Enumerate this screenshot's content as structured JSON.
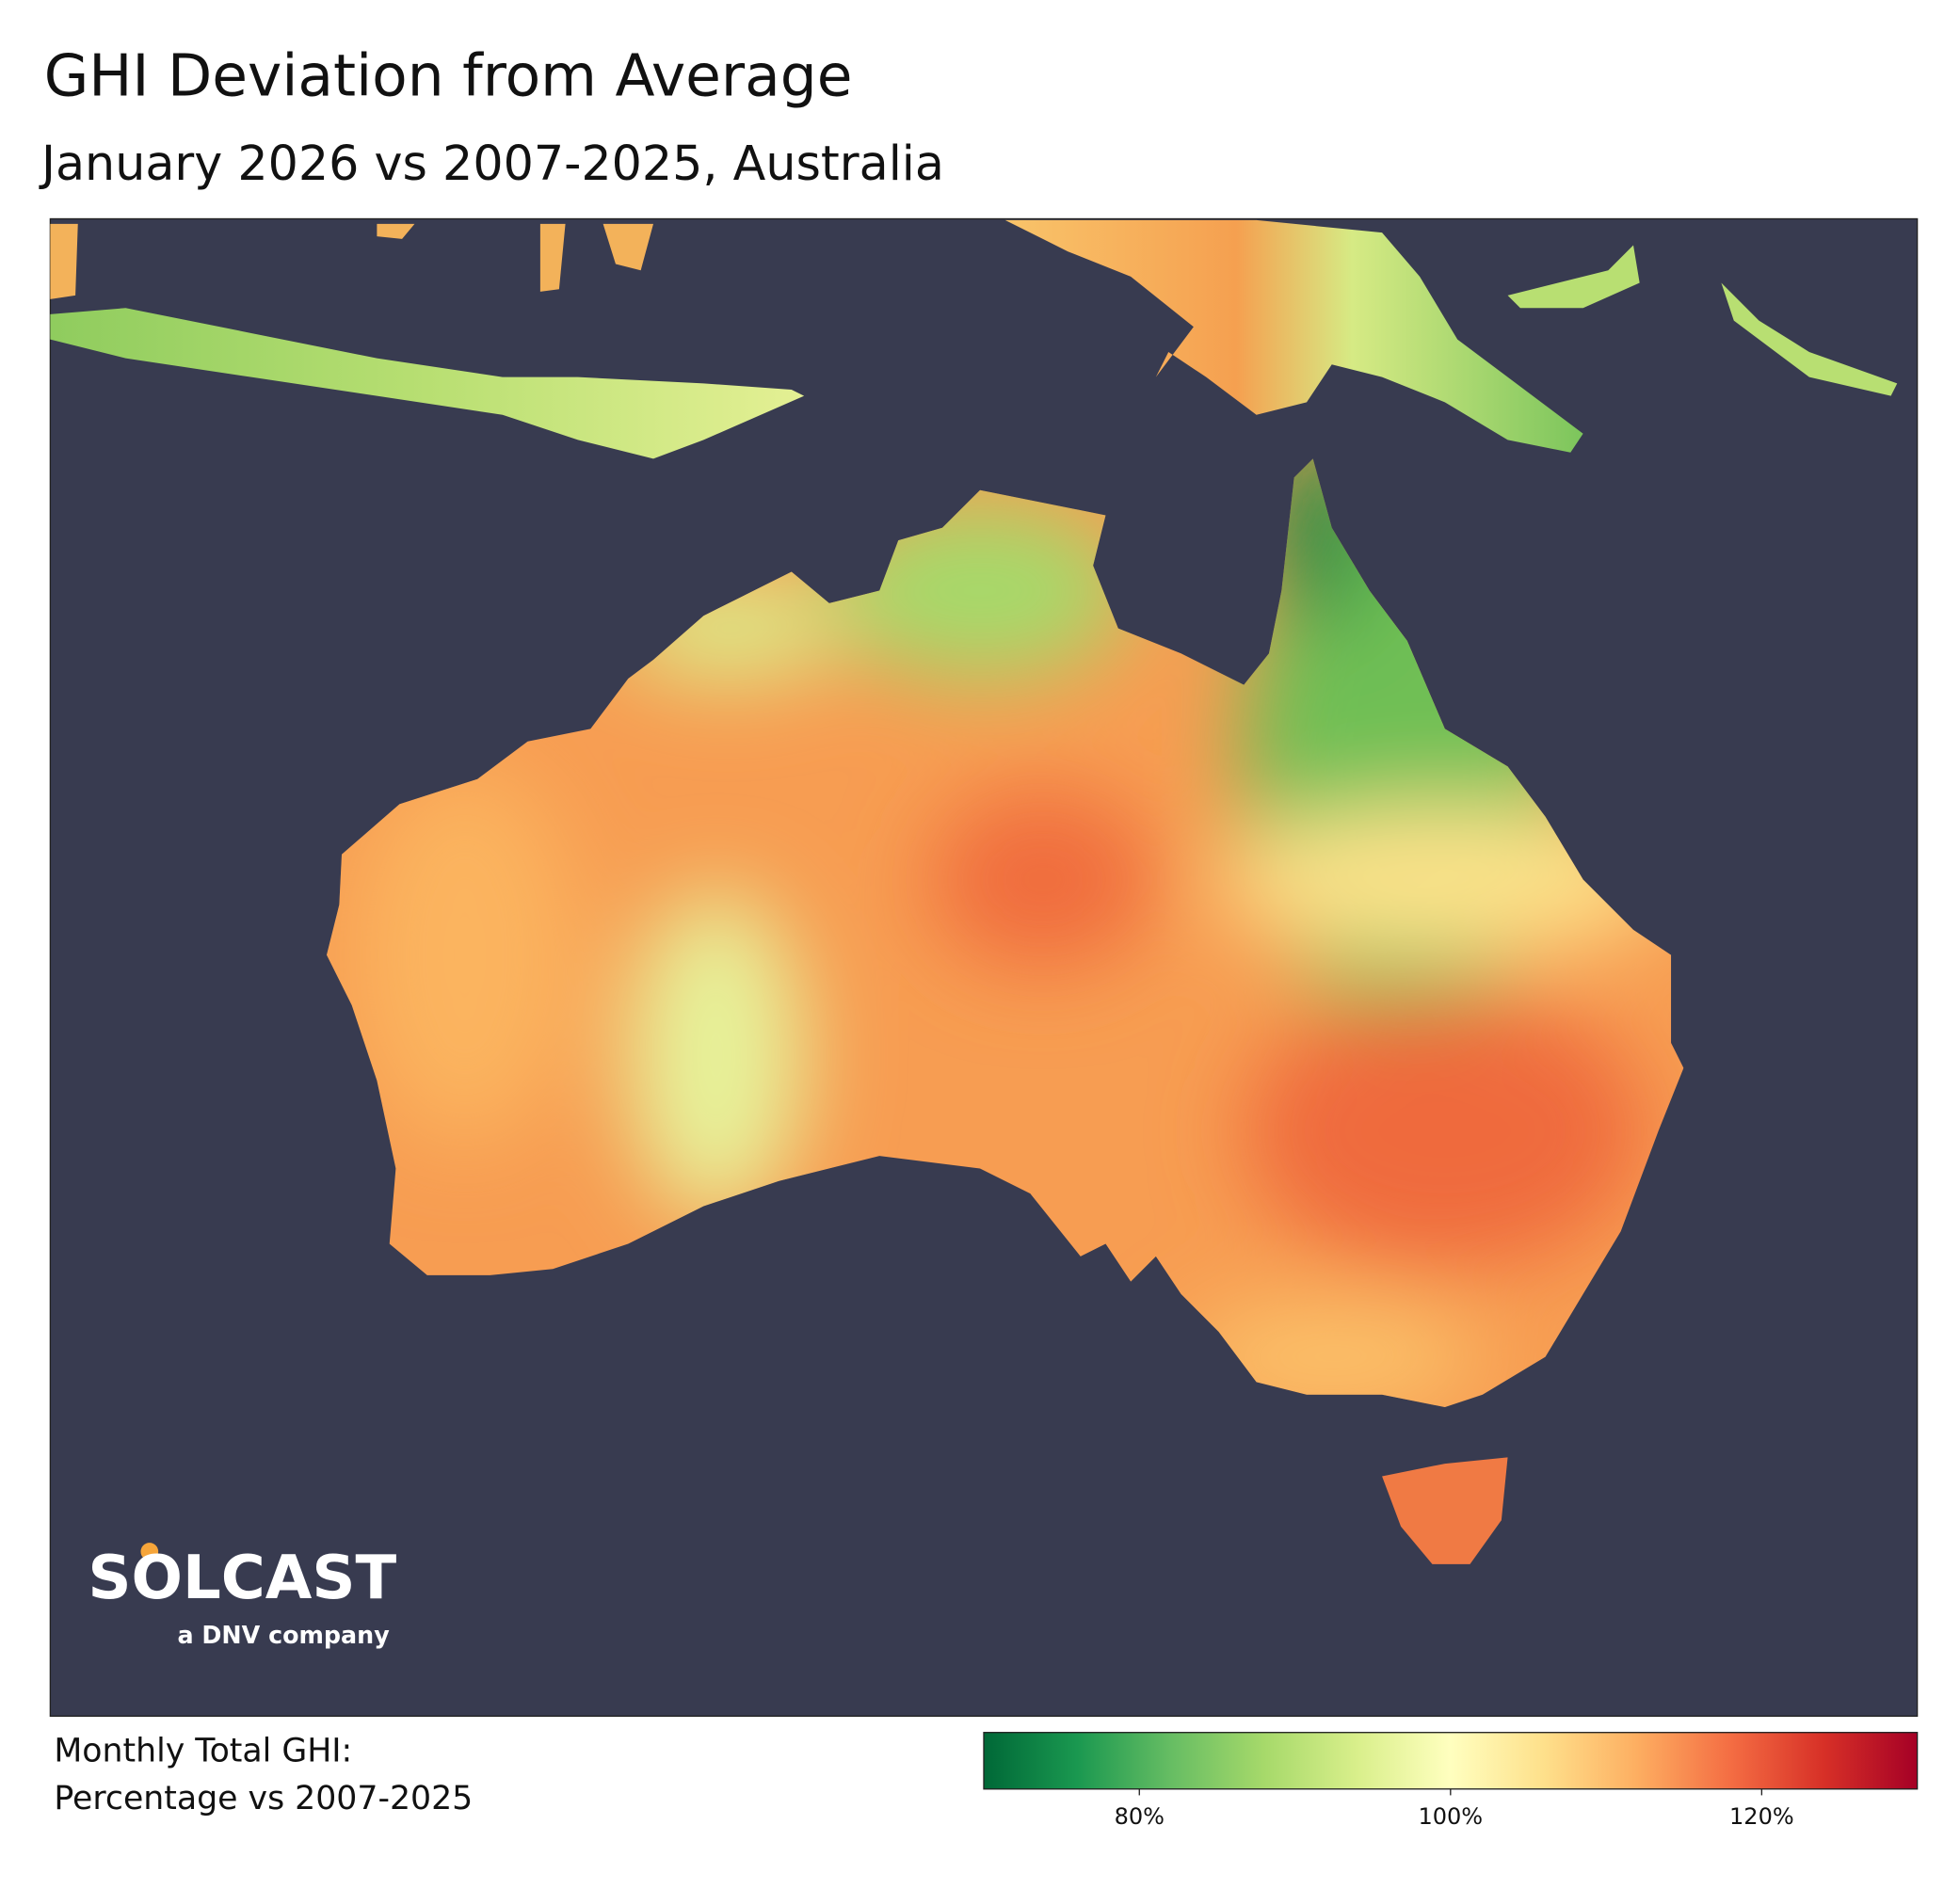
{
  "header": {
    "title": "GHI Deviation from Average",
    "subtitle": "January 2026 vs 2007-2025, Australia"
  },
  "logo": {
    "name": "SOLCAST",
    "tagline": "a DNV company"
  },
  "legend": {
    "label_lines": [
      "Monthly Total GHI:",
      "Percentage vs 2007-2025"
    ],
    "lim": [
      70,
      130
    ],
    "ticks": [
      {
        "value": 80,
        "label": "80%"
      },
      {
        "value": 100,
        "label": "100%"
      },
      {
        "value": 120,
        "label": "120%"
      }
    ],
    "colors": [
      "#006837",
      "#1a9850",
      "#66bd63",
      "#a6d96a",
      "#d9ef8b",
      "#ffffbf",
      "#fee08b",
      "#fdae61",
      "#f46d43",
      "#d73027",
      "#a50026"
    ]
  }
}
